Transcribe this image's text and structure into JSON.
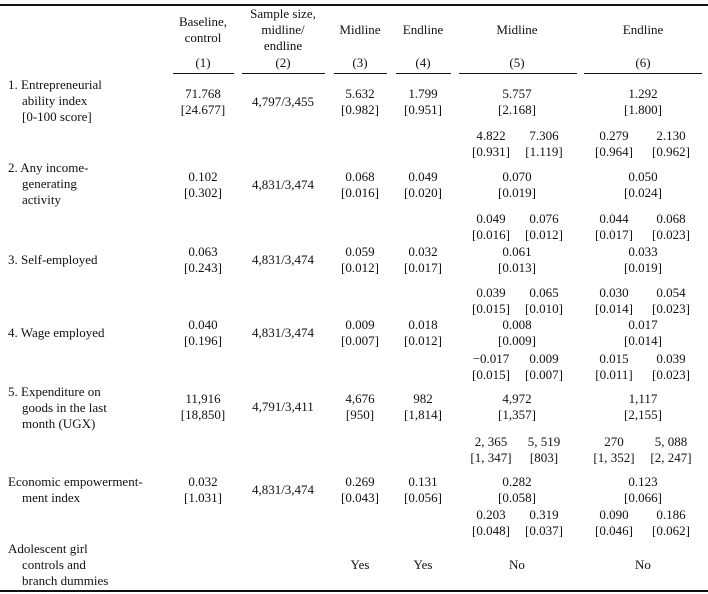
{
  "header": {
    "col1": [
      "Baseline,",
      "control"
    ],
    "col2": [
      "Sample size,",
      "midline/",
      "endline"
    ],
    "col3": "Midline",
    "col4": "Endline",
    "col5": "Midline",
    "col6": "Endline",
    "num1": "(1)",
    "num2": "(2)",
    "num3": "(3)",
    "num4": "(4)",
    "num5": "(5)",
    "num6": "(6)"
  },
  "rows": {
    "r1": {
      "label": [
        "1. Entrepreneurial",
        "ability index",
        "[0-100 score]"
      ],
      "c1": [
        "71.768",
        "[24.677]"
      ],
      "c2": "4,797/3,455",
      "c3": [
        "5.632",
        "[0.982]"
      ],
      "c4": [
        "1.799",
        "[0.951]"
      ],
      "c5": [
        "5.757",
        "[2.168]"
      ],
      "c6": [
        "1.292",
        "[1.800]"
      ],
      "c5a": [
        "4.822",
        "[0.931]"
      ],
      "c5b": [
        "7.306",
        "[1.119]"
      ],
      "c6a": [
        "0.279",
        "[0.964]"
      ],
      "c6b": [
        "2.130",
        "[0.962]"
      ]
    },
    "r2": {
      "label": [
        "2. Any income-",
        "generating",
        "activity"
      ],
      "c1": [
        "0.102",
        "[0.302]"
      ],
      "c2": "4,831/3,474",
      "c3": [
        "0.068",
        "[0.016]"
      ],
      "c4": [
        "0.049",
        "[0.020]"
      ],
      "c5": [
        "0.070",
        "[0.019]"
      ],
      "c6": [
        "0.050",
        "[0.024]"
      ],
      "c5a": [
        "0.049",
        "[0.016]"
      ],
      "c5b": [
        "0.076",
        "[0.012]"
      ],
      "c6a": [
        "0.044",
        "[0.017]"
      ],
      "c6b": [
        "0.068",
        "[0.023]"
      ]
    },
    "r3": {
      "label": [
        "3. Self-employed"
      ],
      "c1": [
        "0.063",
        "[0.243]"
      ],
      "c2": "4,831/3,474",
      "c3": [
        "0.059",
        "[0.012]"
      ],
      "c4": [
        "0.032",
        "[0.017]"
      ],
      "c5": [
        "0.061",
        "[0.013]"
      ],
      "c6": [
        "0.033",
        "[0.019]"
      ],
      "c5a": [
        "0.039",
        "[0.015]"
      ],
      "c5b": [
        "0.065",
        "[0.010]"
      ],
      "c6a": [
        "0.030",
        "[0.014]"
      ],
      "c6b": [
        "0.054",
        "[0.023]"
      ]
    },
    "r4": {
      "label": [
        "4. Wage employed"
      ],
      "c1": [
        "0.040",
        "[0.196]"
      ],
      "c2": "4,831/3,474",
      "c3": [
        "0.009",
        "[0.007]"
      ],
      "c4": [
        "0.018",
        "[0.012]"
      ],
      "c5": [
        "0.008",
        "[0.009]"
      ],
      "c6": [
        "0.017",
        "[0.014]"
      ],
      "c5a": [
        "−0.017",
        "[0.015]"
      ],
      "c5b": [
        "0.009",
        "[0.007]"
      ],
      "c6a": [
        "0.015",
        "[0.011]"
      ],
      "c6b": [
        "0.039",
        "[0.023]"
      ]
    },
    "r5": {
      "label": [
        "5. Expenditure on",
        "goods in the last",
        "month (UGX)"
      ],
      "c1": [
        "11,916",
        "[18,850]"
      ],
      "c2": "4,791/3,411",
      "c3": [
        "4,676",
        "[950]"
      ],
      "c4": [
        "982",
        "[1,814]"
      ],
      "c5": [
        "4,972",
        "[1,357]"
      ],
      "c6": [
        "1,117",
        "[2,155]"
      ],
      "c5a": [
        "2, 365",
        "[1, 347]"
      ],
      "c5b": [
        "5, 519",
        "[803]"
      ],
      "c6a": [
        "270",
        "[1, 352]"
      ],
      "c6b": [
        "5, 088",
        "[2, 247]"
      ]
    },
    "r6": {
      "label": [
        "Economic empowerment-",
        "ment index"
      ],
      "c1": [
        "0.032",
        "[1.031]"
      ],
      "c2": "4,831/3,474",
      "c3": [
        "0.269",
        "[0.043]"
      ],
      "c4": [
        "0.131",
        "[0.056]"
      ],
      "c5": [
        "0.282",
        "[0.058]"
      ],
      "c6": [
        "0.123",
        "[0.066]"
      ],
      "c5a": [
        "0.203",
        "[0.048]"
      ],
      "c5b": [
        "0.319",
        "[0.037]"
      ],
      "c6a": [
        "0.090",
        "[0.046]"
      ],
      "c6b": [
        "0.186",
        "[0.062]"
      ]
    },
    "r7": {
      "label": [
        "Adolescent girl",
        "controls and",
        "branch dummies"
      ],
      "c3": "Yes",
      "c4": "Yes",
      "c5": "No",
      "c6": "No"
    }
  }
}
